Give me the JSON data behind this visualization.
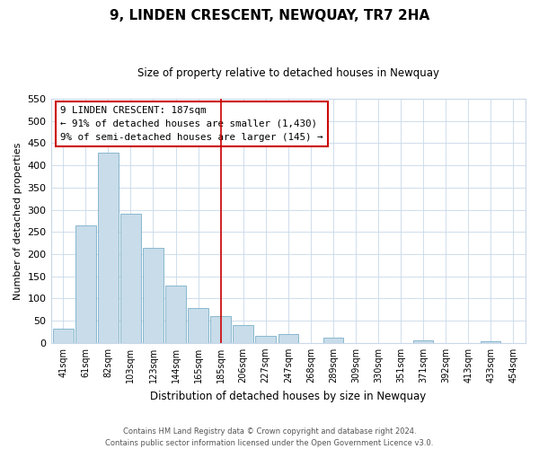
{
  "title": "9, LINDEN CRESCENT, NEWQUAY, TR7 2HA",
  "subtitle": "Size of property relative to detached houses in Newquay",
  "xlabel": "Distribution of detached houses by size in Newquay",
  "ylabel": "Number of detached properties",
  "bar_labels": [
    "41sqm",
    "61sqm",
    "82sqm",
    "103sqm",
    "123sqm",
    "144sqm",
    "165sqm",
    "185sqm",
    "206sqm",
    "227sqm",
    "247sqm",
    "268sqm",
    "289sqm",
    "309sqm",
    "330sqm",
    "351sqm",
    "371sqm",
    "392sqm",
    "413sqm",
    "433sqm",
    "454sqm"
  ],
  "bar_values": [
    32,
    265,
    428,
    292,
    215,
    130,
    78,
    60,
    40,
    15,
    20,
    0,
    11,
    0,
    0,
    0,
    5,
    0,
    0,
    3,
    0
  ],
  "bar_color": "#c8dcea",
  "bar_edge_color": "#7aafc8",
  "vline_x_index": 7,
  "vline_color": "#cc0000",
  "ylim": [
    0,
    550
  ],
  "yticks": [
    0,
    50,
    100,
    150,
    200,
    250,
    300,
    350,
    400,
    450,
    500,
    550
  ],
  "annotation_title": "9 LINDEN CRESCENT: 187sqm",
  "annotation_line1": "← 91% of detached houses are smaller (1,430)",
  "annotation_line2": "9% of semi-detached houses are larger (145) →",
  "footer_line1": "Contains HM Land Registry data © Crown copyright and database right 2024.",
  "footer_line2": "Contains public sector information licensed under the Open Government Licence v3.0.",
  "background_color": "#ffffff",
  "grid_color": "#c8d8e8"
}
